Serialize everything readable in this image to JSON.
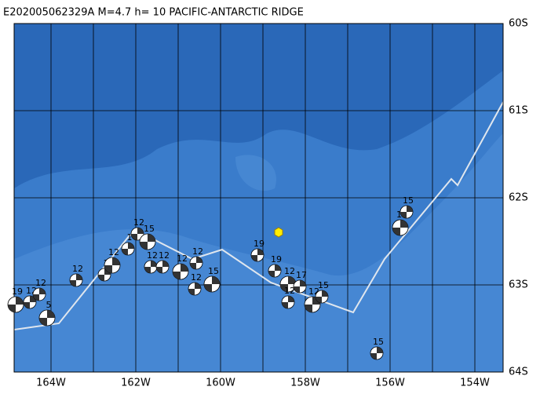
{
  "title": "E202005062329A  M=4.7  h= 10 PACIFIC-ANTARCTIC RIDGE",
  "lat_labels": [
    "60S",
    "61S",
    "62S",
    "63S",
    "64S"
  ],
  "lon_labels": [
    "164W",
    "162W",
    "160W",
    "158W",
    "156W",
    "154W"
  ],
  "events": [
    "19",
    "12",
    "12",
    "5",
    "12",
    "1",
    "12",
    "1",
    "12",
    "15",
    "12",
    "12",
    "12",
    "12",
    "12",
    "15",
    "19",
    "19",
    "12",
    "12",
    "17",
    "12",
    "15",
    "15",
    "19",
    "15"
  ]
}
